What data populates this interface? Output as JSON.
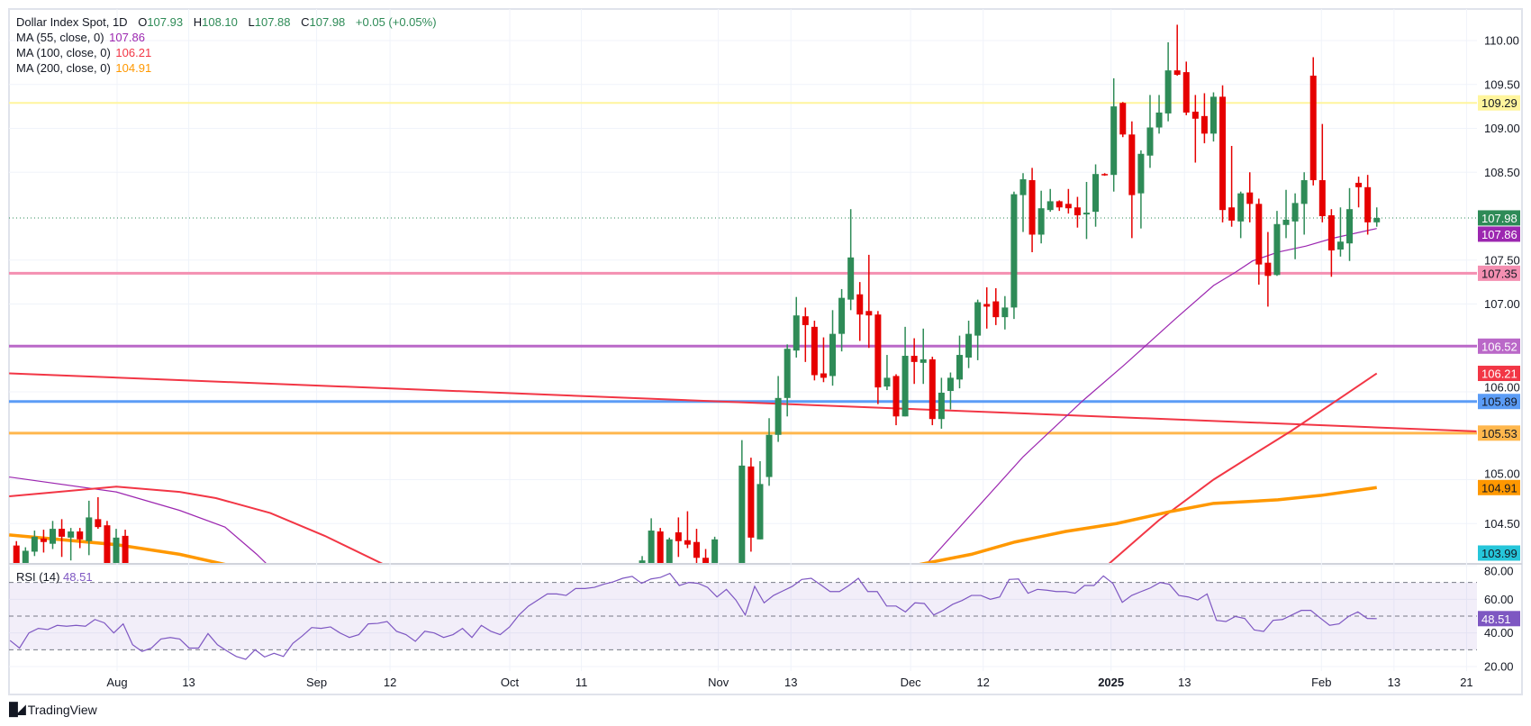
{
  "legend": {
    "symbol": "Dollar Index Spot, 1D",
    "open_label": "O",
    "open": "107.93",
    "high_label": "H",
    "high": "108.10",
    "low_label": "L",
    "low": "107.88",
    "close_label": "C",
    "close": "107.98",
    "change": "+0.05 (+0.05%)",
    "ohlc_color": "#2e8b57",
    "ma_rows": [
      {
        "label": "MA (55, close, 0)",
        "value": "107.86",
        "color": "#9c27b0"
      },
      {
        "label": "MA (100, close, 0)",
        "value": "106.21",
        "color": "#f23645"
      },
      {
        "label": "MA (200, close, 0)",
        "value": "104.91",
        "color": "#ff9800"
      }
    ]
  },
  "rsi_legend": {
    "label": "RSI (14)",
    "value": "48.51",
    "color": "#7e57c2"
  },
  "brand": {
    "logo": "TV",
    "name": "TradingView"
  },
  "chart_data": {
    "type": "candlestick",
    "title": "Dollar Index Spot, 1D",
    "ylim": [
      104.05,
      110.26
    ],
    "up_color": "#2e8b57",
    "down_color": "#e60000",
    "price_ticks": [
      "110.00",
      "109.50",
      "109.00",
      "108.50",
      "107.50",
      "107.00",
      "106.00",
      "105.00",
      "104.50"
    ],
    "time_ticks": [
      {
        "label": "Aug",
        "bar": 0.1
      },
      {
        "label": "13",
        "bar": 8
      },
      {
        "label": "Sep",
        "bar": 22.1
      },
      {
        "label": "12",
        "bar": 30.2
      },
      {
        "label": "Oct",
        "bar": 43.4
      },
      {
        "label": "11",
        "bar": 51.3
      },
      {
        "label": "Nov",
        "bar": 66.4
      },
      {
        "label": "13",
        "bar": 74.4
      },
      {
        "label": "Dec",
        "bar": 87.6
      },
      {
        "label": "12",
        "bar": 95.6
      },
      {
        "label": "2025",
        "bar": 109.7,
        "bold": true
      },
      {
        "label": "13",
        "bar": 117.8
      },
      {
        "label": "Feb",
        "bar": 132.9
      },
      {
        "label": "13",
        "bar": 140.9
      },
      {
        "label": "21",
        "bar": 148.9
      }
    ],
    "candles_fields": [
      "bar",
      "open",
      "high",
      "low",
      "close"
    ],
    "candles": [
      [
        -11,
        104.25,
        104.3,
        103.9,
        103.95
      ],
      [
        -10,
        103.95,
        104.23,
        103.9,
        104.19
      ],
      [
        -9,
        104.18,
        104.42,
        104.13,
        104.35
      ],
      [
        -8,
        104.33,
        104.43,
        104.17,
        104.29
      ],
      [
        -7,
        104.27,
        104.53,
        104.21,
        104.44
      ],
      [
        -6,
        104.44,
        104.55,
        104.12,
        104.35
      ],
      [
        -5,
        104.34,
        104.45,
        104.08,
        104.41
      ],
      [
        -4,
        104.41,
        104.45,
        104.22,
        104.32
      ],
      [
        -3,
        104.3,
        104.76,
        104.14,
        104.57
      ],
      [
        -2,
        104.55,
        104.8,
        104.44,
        104.46
      ],
      [
        -1,
        104.48,
        104.53,
        103.9,
        103.95
      ],
      [
        0,
        103.95,
        104.44,
        103.9,
        104.34
      ],
      [
        1,
        104.36,
        104.43,
        103.85,
        103.9
      ],
      [
        58,
        104.0,
        104.13,
        103.95,
        104.08
      ],
      [
        59,
        103.95,
        104.56,
        103.9,
        104.42
      ],
      [
        60,
        104.41,
        104.45,
        103.9,
        103.95
      ],
      [
        61,
        103.98,
        104.34,
        103.95,
        104.32
      ],
      [
        62,
        104.4,
        104.57,
        104.12,
        104.3
      ],
      [
        63,
        104.31,
        104.64,
        104.22,
        104.26
      ],
      [
        64,
        104.29,
        104.44,
        103.98,
        104.11
      ],
      [
        65,
        104.11,
        104.21,
        103.9,
        103.98
      ],
      [
        66,
        103.95,
        104.35,
        103.9,
        104.32
      ],
      [
        69,
        103.9,
        105.45,
        103.7,
        105.16
      ],
      [
        70,
        105.15,
        105.25,
        104.18,
        104.34
      ],
      [
        71,
        104.32,
        105.21,
        104.32,
        104.95
      ],
      [
        72,
        105.03,
        105.7,
        104.93,
        105.51
      ],
      [
        73,
        105.51,
        106.18,
        105.43,
        105.93
      ],
      [
        74,
        105.93,
        106.54,
        105.72,
        106.49
      ],
      [
        75,
        106.47,
        107.08,
        106.39,
        106.87
      ],
      [
        76,
        106.86,
        106.96,
        106.34,
        106.76
      ],
      [
        77,
        106.74,
        106.81,
        106.13,
        106.19
      ],
      [
        78,
        106.21,
        106.62,
        106.11,
        106.16
      ],
      [
        79,
        106.18,
        106.93,
        106.07,
        106.66
      ],
      [
        80,
        106.66,
        107.17,
        106.46,
        107.07
      ],
      [
        81,
        107.05,
        108.08,
        106.93,
        107.53
      ],
      [
        82,
        107.11,
        107.25,
        106.58,
        106.88
      ],
      [
        83,
        106.92,
        107.56,
        106.5,
        106.87
      ],
      [
        84,
        106.88,
        106.92,
        105.86,
        106.05
      ],
      [
        85,
        106.06,
        106.42,
        106.02,
        106.16
      ],
      [
        86,
        106.18,
        106.2,
        105.62,
        105.72
      ],
      [
        87,
        105.72,
        106.74,
        105.72,
        106.41
      ],
      [
        88,
        106.41,
        106.61,
        106.09,
        106.34
      ],
      [
        89,
        106.33,
        106.72,
        106.09,
        106.37
      ],
      [
        90,
        106.37,
        106.4,
        105.62,
        105.69
      ],
      [
        91,
        105.69,
        106.16,
        105.58,
        105.99
      ],
      [
        92,
        106.01,
        106.22,
        105.8,
        106.16
      ],
      [
        93,
        106.14,
        106.64,
        106.04,
        106.42
      ],
      [
        94,
        106.39,
        106.81,
        106.27,
        106.66
      ],
      [
        95,
        106.64,
        107.05,
        106.36,
        107.02
      ],
      [
        96,
        107.0,
        107.19,
        106.72,
        106.97
      ],
      [
        97,
        107.03,
        107.18,
        106.76,
        106.85
      ],
      [
        98,
        106.85,
        107.09,
        106.71,
        106.96
      ],
      [
        99,
        106.96,
        108.28,
        106.83,
        108.25
      ],
      [
        100,
        108.24,
        108.49,
        107.82,
        108.42
      ],
      [
        101,
        108.41,
        108.55,
        107.59,
        107.79
      ],
      [
        102,
        107.79,
        108.29,
        107.69,
        108.09
      ],
      [
        103,
        108.07,
        108.31,
        108.05,
        108.17
      ],
      [
        104,
        108.17,
        108.18,
        108.06,
        108.1
      ],
      [
        105,
        108.14,
        108.31,
        108.03,
        108.09
      ],
      [
        106,
        108.1,
        108.22,
        107.87,
        108.01
      ],
      [
        107,
        108.02,
        108.39,
        107.74,
        108.04
      ],
      [
        108,
        108.05,
        108.59,
        107.88,
        108.48
      ],
      [
        109,
        108.48,
        108.49,
        108.46,
        108.47
      ],
      [
        110,
        108.47,
        109.57,
        108.28,
        109.25
      ],
      [
        111,
        109.29,
        109.3,
        108.9,
        108.93
      ],
      [
        112,
        108.93,
        109.08,
        107.75,
        108.24
      ],
      [
        113,
        108.26,
        108.75,
        107.86,
        108.71
      ],
      [
        114,
        108.69,
        109.38,
        108.55,
        109.01
      ],
      [
        115,
        109.01,
        109.38,
        108.94,
        109.18
      ],
      [
        116,
        109.17,
        109.98,
        109.08,
        109.66
      ],
      [
        117,
        109.66,
        110.18,
        109.6,
        109.61
      ],
      [
        118,
        109.64,
        109.76,
        109.15,
        109.18
      ],
      [
        119,
        109.19,
        109.38,
        108.61,
        109.11
      ],
      [
        120,
        109.14,
        109.4,
        108.83,
        108.94
      ],
      [
        121,
        108.94,
        109.41,
        108.85,
        109.36
      ],
      [
        122,
        109.36,
        109.49,
        107.93,
        108.07
      ],
      [
        123,
        108.1,
        108.8,
        107.88,
        107.95
      ],
      [
        124,
        107.94,
        108.28,
        107.75,
        108.26
      ],
      [
        125,
        108.27,
        108.5,
        107.93,
        108.14
      ],
      [
        126,
        108.14,
        108.2,
        107.22,
        107.45
      ],
      [
        127,
        107.47,
        107.82,
        106.97,
        107.32
      ],
      [
        128,
        107.33,
        108.06,
        107.32,
        107.91
      ],
      [
        129,
        107.9,
        108.3,
        107.75,
        107.96
      ],
      [
        130,
        107.94,
        108.26,
        107.51,
        108.15
      ],
      [
        131,
        108.14,
        108.5,
        107.79,
        108.41
      ],
      [
        132,
        109.6,
        109.81,
        108.35,
        108.41
      ],
      [
        133,
        108.41,
        109.05,
        107.93,
        108.0
      ],
      [
        134,
        108.01,
        108.08,
        107.31,
        107.61
      ],
      [
        135,
        107.62,
        108.1,
        107.54,
        107.71
      ],
      [
        136,
        107.69,
        108.32,
        107.49,
        108.08
      ],
      [
        137,
        108.38,
        108.45,
        108.1,
        108.33
      ],
      [
        138,
        108.33,
        108.47,
        107.79,
        107.93
      ],
      [
        139,
        107.93,
        108.1,
        107.88,
        107.98
      ]
    ],
    "moving_averages": [
      {
        "name": "MA 55",
        "color": "#9c27b0",
        "points": [
          [
            -11.8,
            105.03
          ],
          [
            0,
            104.86
          ],
          [
            7,
            104.65
          ],
          [
            12,
            104.46
          ],
          [
            15.5,
            104.15
          ],
          [
            17,
            104.0
          ],
          [
            89,
            104.0
          ],
          [
            100,
            105.26
          ],
          [
            106.6,
            105.9
          ],
          [
            111.2,
            106.31
          ],
          [
            116.9,
            106.84
          ],
          [
            121,
            107.21
          ],
          [
            123.4,
            107.36
          ],
          [
            125.3,
            107.49
          ],
          [
            128.1,
            107.59
          ],
          [
            131.2,
            107.66
          ],
          [
            134.2,
            107.75
          ],
          [
            139,
            107.86
          ]
        ]
      },
      {
        "name": "MA 100",
        "color": "#f23645",
        "points": [
          [
            -11.8,
            104.81
          ],
          [
            0,
            104.92
          ],
          [
            7,
            104.86
          ],
          [
            11,
            104.79
          ],
          [
            17,
            104.62
          ],
          [
            23,
            104.36
          ],
          [
            30.2,
            104.0
          ],
          [
            109,
            104.0
          ],
          [
            115,
            104.54
          ],
          [
            121,
            105.0
          ],
          [
            125.3,
            105.28
          ],
          [
            129.5,
            105.55
          ],
          [
            134.7,
            105.91
          ],
          [
            139,
            106.21
          ]
        ]
      },
      {
        "name": "MA 200",
        "color": "#ff9800",
        "points": [
          [
            -11.8,
            104.37
          ],
          [
            0,
            104.26
          ],
          [
            7,
            104.15
          ],
          [
            13.5,
            104.0
          ],
          [
            86.9,
            104.0
          ],
          [
            94.3,
            104.15
          ],
          [
            99.1,
            104.29
          ],
          [
            104.7,
            104.41
          ],
          [
            110.3,
            104.5
          ],
          [
            116.4,
            104.64
          ],
          [
            121,
            104.73
          ],
          [
            128.1,
            104.77
          ],
          [
            132.8,
            104.82
          ],
          [
            139,
            104.91
          ]
        ]
      }
    ],
    "trendline": {
      "color": "#f23645",
      "points": [
        [
          -11.8,
          106.21
        ],
        [
          150,
          105.55
        ]
      ]
    },
    "levels": [
      {
        "price": 109.29,
        "label": "109.29",
        "color": "#fff59d",
        "text": "#131722",
        "line": true
      },
      {
        "price": 107.35,
        "label": "107.35",
        "color": "#f48fb1",
        "text": "#131722",
        "line": true
      },
      {
        "price": 106.52,
        "label": "106.52",
        "color": "#ba68c8",
        "text": "#ffffff",
        "line": true
      },
      {
        "price": 105.89,
        "label": "105.89",
        "color": "#5b9cf6",
        "text": "#131722",
        "line": true
      },
      {
        "price": 105.53,
        "label": "105.53",
        "color": "#ffb74d",
        "text": "#131722",
        "line": true
      }
    ],
    "price_badges": [
      {
        "price": 107.98,
        "label": "107.98",
        "color": "#2e8b57",
        "text": "#ffffff"
      },
      {
        "price": 107.86,
        "label": "107.86",
        "color": "#9c27b0",
        "text": "#ffffff"
      },
      {
        "price": 106.21,
        "label": "106.21",
        "color": "#f23645",
        "text": "#ffffff"
      },
      {
        "price": 104.91,
        "label": "104.91",
        "color": "#ff9800",
        "text": "#131722"
      },
      {
        "price": 103.99,
        "label": "103.99",
        "color": "#26c6da",
        "text": "#131722"
      }
    ],
    "last_price": 107.98,
    "rsi": {
      "period": 14,
      "color": "#7e57c2",
      "ylim": [
        20,
        80
      ],
      "ticks": [
        "80.00",
        "60.00",
        "40.00",
        "20.00"
      ],
      "bands": [
        70,
        50,
        30
      ],
      "last": "48.51",
      "start_bar": -11.7,
      "end_bar": 139,
      "values": [
        35.5,
        31,
        40,
        42.7,
        42,
        44.5,
        44,
        44.5,
        44,
        48,
        46,
        40,
        45.4,
        33,
        29,
        31,
        36.4,
        37.3,
        36.4,
        31,
        31,
        39.6,
        33,
        29.3,
        26,
        24.3,
        30,
        25.7,
        27.9,
        26,
        33.8,
        38.2,
        43.2,
        42.7,
        43.6,
        40,
        37.3,
        39,
        45.4,
        45.7,
        46.8,
        41,
        39,
        35,
        41,
        40,
        37.3,
        39,
        42.7,
        37.3,
        44.5,
        41,
        39,
        43.6,
        50.7,
        56,
        59.6,
        63.2,
        63.2,
        62.3,
        66.4,
        66.4,
        67.1,
        69,
        70.4,
        72.5,
        73.6,
        69.5,
        72.1,
        73,
        75.4,
        68.2,
        70,
        69.5,
        67.1,
        61.4,
        65.9,
        59.6,
        50.7,
        67.7,
        57.9,
        62.3,
        65,
        67.7,
        71.8,
        72.5,
        68.6,
        64.6,
        64.6,
        68.2,
        72.5,
        64.6,
        64.6,
        56,
        56,
        52.5,
        57.9,
        57.5,
        50.7,
        53.4,
        57,
        59.3,
        62.3,
        62.3,
        60,
        61.4,
        71.8,
        72.1,
        63.6,
        65.9,
        65.4,
        64.6,
        64.6,
        63.6,
        68.2,
        68.2,
        73.9,
        69.5,
        58.2,
        62.3,
        64.6,
        66.8,
        70,
        68.9,
        62.3,
        61.4,
        59.6,
        63.2,
        47.5,
        46.8,
        49.8,
        48.6,
        41.8,
        40.9,
        47.5,
        48,
        50.7,
        53.4,
        53.4,
        48.9,
        44.5,
        45.4,
        49.8,
        52.5,
        48.6,
        48.51
      ]
    }
  }
}
